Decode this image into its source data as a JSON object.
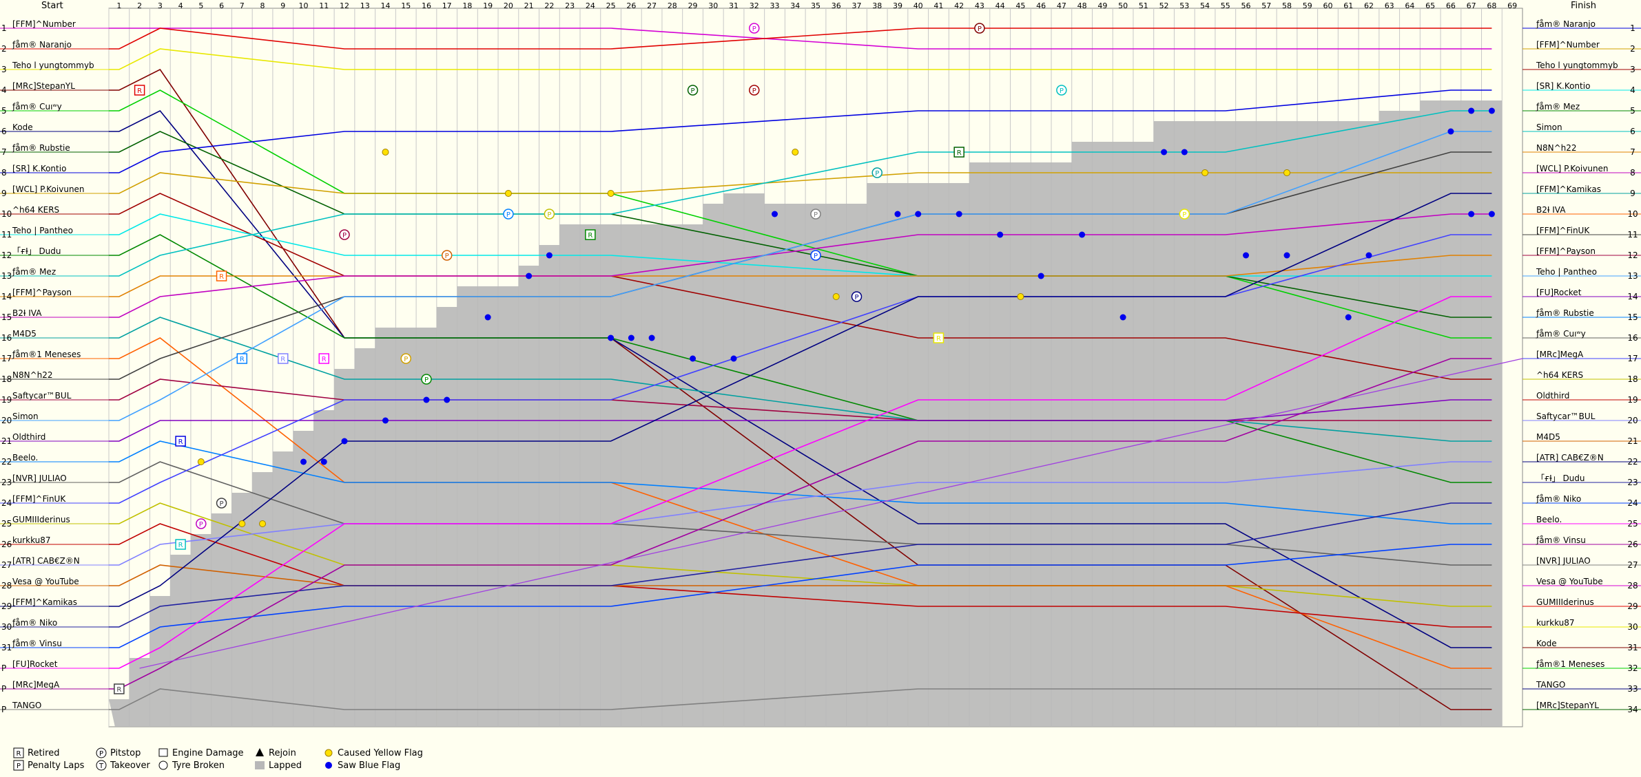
{
  "chart_data": {
    "type": "line",
    "title": "",
    "header": {
      "start_label": "Start",
      "finish_label": "Finish"
    },
    "x_label": "",
    "laps": 69,
    "lap_ticks": [
      1,
      2,
      3,
      4,
      5,
      6,
      7,
      8,
      9,
      10,
      11,
      12,
      13,
      14,
      15,
      16,
      17,
      18,
      19,
      20,
      21,
      22,
      23,
      24,
      25,
      26,
      27,
      28,
      29,
      30,
      31,
      32,
      33,
      34,
      35,
      36,
      37,
      38,
      39,
      40,
      41,
      42,
      43,
      44,
      45,
      46,
      47,
      48,
      49,
      50,
      51,
      52,
      53,
      54,
      55,
      56,
      57,
      58,
      59,
      60,
      61,
      62,
      63,
      64,
      65,
      66,
      67,
      68,
      69
    ],
    "position_labels": [
      "1",
      "2",
      "3",
      "4",
      "5",
      "6",
      "7",
      "8",
      "9",
      "10",
      "11",
      "12",
      "13",
      "14",
      "15",
      "16",
      "17",
      "18",
      "19",
      "20",
      "21",
      "22",
      "23",
      "24",
      "25",
      "26",
      "27",
      "28",
      "29",
      "30",
      "31",
      "P",
      "P",
      "P"
    ],
    "finish_position_labels": [
      "1",
      "2",
      "3",
      "4",
      "5",
      "6",
      "7",
      "8",
      "9",
      "10",
      "11",
      "12",
      "13",
      "14",
      "15",
      "16",
      "17",
      "18",
      "19",
      "20",
      "21",
      "22",
      "23",
      "24",
      "25",
      "26",
      "27",
      "28",
      "29",
      "30",
      "31",
      "32",
      "33",
      "34"
    ],
    "start_names": [
      "[FFM]^Number",
      "ƒåm® Naranjo",
      "Teho l yungtommyb",
      "[MRc]StepanYL",
      "ƒåm® Cuıʷy",
      "Kode",
      "ƒåm® Rubstie",
      "[SR] K.Kontio",
      "[WCL] P.Koivunen",
      "^h64 KERS",
      "Teho | Pantheo",
      "「ғƗ」 Dudu",
      "ƒåm® Mez",
      "[FFM]^Payson",
      "B2Ɨ IVA",
      "M4D5",
      "ƒåm®1 Meneses",
      "N8N^h22",
      "Saftycar™BUL",
      "Simon",
      "Oldthird",
      "Beelo.",
      "[NVR] JULIAO",
      "[FFM]^FinUK",
      "GUMIIIderinus",
      "kurkku87",
      "[ATR] CAB€Z®N",
      "Vesa @ YouTube",
      "[FFM]^Kamikas",
      "ƒåm® Niko",
      "ƒåm® Vinsu",
      "[FU]Rocket",
      "[MRc]MegA",
      "TANGO"
    ],
    "finish_names": [
      "ƒåm® Naranjo",
      "[FFM]^Number",
      "Teho l yungtommyb",
      "[SR] K.Kontio",
      "ƒåm® Mez",
      "Simon",
      "N8N^h22",
      "[WCL] P.Koivunen",
      "[FFM]^Kamikas",
      "B2Ɨ IVA",
      "[FFM]^FinUK",
      "[FFM]^Payson",
      "Teho | Pantheo",
      "[FU]Rocket",
      "ƒåm® Rubstie",
      "ƒåm® Cuıʷy",
      "[MRc]MegA",
      "^h64 KERS",
      "Oldthird",
      "Saftycar™BUL",
      "M4D5",
      "[ATR] CAB€Z®N",
      "「ғƗ」 Dudu",
      "ƒåm® Niko",
      "Beelo.",
      "ƒåm® Vinsu",
      "[NVR] JULIAO",
      "Vesa @ YouTube",
      "GUMIIIderinus",
      "kurkku87",
      "Kode",
      "ƒåm®1 Meneses",
      "TANGO",
      "[MRc]StepanYL"
    ],
    "colors": [
      "#d400d4",
      "#e00000",
      "#e8e800",
      "#800000",
      "#00d000",
      "#000080",
      "#006000",
      "#0000e0",
      "#d0a000",
      "#a00000",
      "#00e8e8",
      "#008800",
      "#00c0c0",
      "#e08000",
      "#c000c0",
      "#00a0a0",
      "#ff6000",
      "#404040",
      "#a00040",
      "#40a0ff",
      "#8000c0",
      "#0080ff",
      "#606060",
      "#4040ff",
      "#c0c000",
      "#c00000",
      "#8080ff",
      "#d06000",
      "#000080",
      "#2020a0",
      "#0040ff",
      "#ff00ff",
      "#a000a0",
      "#808080"
    ],
    "lapped_fill": "#b8b8b8",
    "yellow_flag_color": "#ffe000",
    "blue_flag_color": "#0000ee",
    "legend": [
      {
        "symbol": "R",
        "label": "Retired"
      },
      {
        "symbol": "P",
        "label": "Penalty Laps"
      },
      {
        "symbol": "P",
        "label": "Pitstop",
        "shape": "circle"
      },
      {
        "symbol": "T",
        "label": "Takeover",
        "shape": "circle"
      },
      {
        "symbol": "engine-icon",
        "label": "Engine Damage"
      },
      {
        "symbol": "tyre-icon",
        "label": "Tyre Broken"
      },
      {
        "symbol": "triangle-icon",
        "label": "Rejoin"
      },
      {
        "symbol": "gray-box",
        "label": "Lapped"
      },
      {
        "symbol": "yellow-dot",
        "label": "Caused Yellow Flag"
      },
      {
        "symbol": "blue-dot",
        "label": "Saw Blue Flag"
      }
    ]
  }
}
